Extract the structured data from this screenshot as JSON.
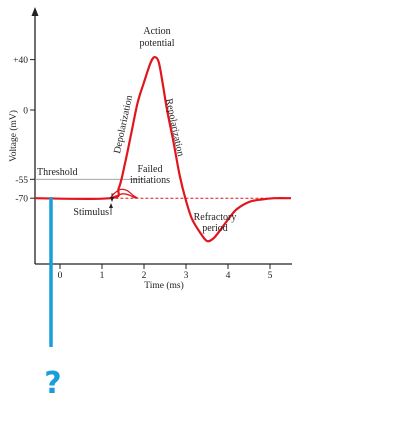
{
  "chart_data": {
    "type": "line",
    "ylabel": "Voltage (mV)",
    "xlabel": "Time (ms)",
    "x_ticks": [
      "0",
      "1",
      "2",
      "3",
      "4",
      "5"
    ],
    "y_ticks": [
      "+40",
      "0",
      "-55",
      "-70"
    ],
    "xlim": [
      -0.6,
      5.5
    ],
    "ylim": [
      -115,
      70
    ],
    "series": [
      {
        "x": [
          -0.6,
          1.2,
          1.4,
          1.55,
          1.7,
          1.85,
          2.0,
          2.15,
          2.25,
          2.35,
          2.45,
          2.55,
          2.7,
          2.85,
          3.0,
          3.15,
          3.35,
          3.5,
          3.65,
          3.8,
          4.0,
          4.2,
          4.5,
          4.8,
          5.1,
          5.5
        ],
        "y": [
          -70,
          -70,
          -62,
          -42,
          -18,
          6,
          22,
          37,
          42,
          38,
          20,
          0,
          -25,
          -52,
          -72,
          -87,
          -98,
          -104,
          -102,
          -96,
          -87,
          -79,
          -73,
          -71,
          -70,
          -70
        ]
      }
    ],
    "failed_initiations": [
      {
        "x": [
          1.2,
          1.3,
          1.45,
          1.6,
          1.75,
          1.85
        ],
        "y": [
          -70,
          -66,
          -63,
          -64,
          -68,
          -70
        ]
      },
      {
        "x": [
          1.2,
          1.35,
          1.5,
          1.65,
          1.8
        ],
        "y": [
          -70,
          -68,
          -66.5,
          -67.5,
          -70
        ]
      }
    ],
    "threshold": -55,
    "resting": -70,
    "stimulus_x": 1.2,
    "annotations": {
      "action_potential_line1": "Action",
      "action_potential_line2": "potential",
      "depolarization": "Depolarization",
      "repolarization": "Repolarization",
      "threshold": "Threshold",
      "failed_line1": "Failed",
      "failed_line2": "initiations",
      "stimulus": "Stimulus",
      "refractory_line1": "Refractory",
      "refractory_line2": "period"
    },
    "colors": {
      "curve": "#e0161e",
      "axes": "#222222",
      "threshold_line": "#999999",
      "marker": "#1a9ed9"
    }
  },
  "overlay": {
    "question_mark": "?"
  }
}
